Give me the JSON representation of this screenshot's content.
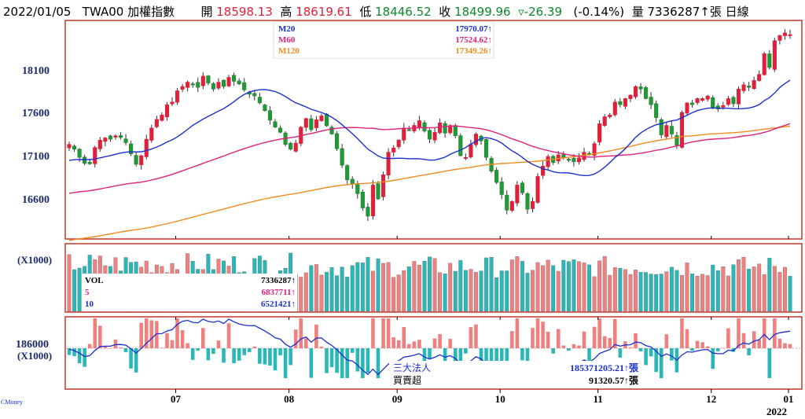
{
  "header": {
    "date": "2022/01/05",
    "symbol": "TWA00 加權指數",
    "open_label": "開",
    "open_value": "18598.13",
    "high_label": "高",
    "high_value": "18619.61",
    "low_label": "低",
    "low_value": "18446.52",
    "close_label": "收",
    "close_value": "18499.96",
    "change_value": "▿-26.39",
    "change_pct": "(-0.14%)",
    "volume_label": "量",
    "volume_value": "7336287↑張",
    "period": "日線"
  },
  "colors": {
    "up": "#f08080",
    "down": "#2ab7b7",
    "frame": "#c0392b",
    "ma20": "#1a2fd0",
    "ma60": "#e0207a",
    "ma120": "#f08c1e",
    "institutional_line": "#1a2fd0",
    "axis_text": "#1a2a6b"
  },
  "price_panel": {
    "y_ticks": [
      "18100",
      "17600",
      "17100",
      "16600"
    ],
    "legend": [
      {
        "name": "M20",
        "value": "17970.07↑",
        "color": "#1a2fd0"
      },
      {
        "name": "M60",
        "value": "17524.62↑",
        "color": "#e0207a"
      },
      {
        "name": "M120",
        "value": "17349.26↑",
        "color": "#f08c1e"
      }
    ]
  },
  "volume_panel": {
    "unit_label": "(X1000)",
    "legend": [
      {
        "name": "VOL",
        "value": "7336287↑",
        "color": "#000000"
      },
      {
        "name": "5",
        "value": "6837711↑",
        "color": "#e0207a"
      },
      {
        "name": "10",
        "value": "6521421↑",
        "color": "#1a2fd0"
      }
    ]
  },
  "inst_panel": {
    "y_tick": "186000",
    "unit_label": "(X1000)",
    "legend": [
      {
        "name": "三大法人",
        "value": "185371205.21↑張",
        "color": "#1a2fd0"
      },
      {
        "name": "買賣超",
        "value": "91320.57↑張",
        "color": "#000000"
      }
    ]
  },
  "x_axis": {
    "months": [
      "07",
      "08",
      "09",
      "10",
      "11",
      "12",
      "01"
    ],
    "year_label": "2022"
  },
  "brand": "CMoney",
  "chart_data": {
    "type": "candlestick",
    "symbol": "TWA00 加權指數",
    "period": "日線",
    "y_ticks": [
      16600,
      17100,
      17600,
      18100
    ],
    "ylim": [
      16150,
      18720
    ],
    "candles_close": [
      17230,
      17175,
      17080,
      17010,
      17005,
      17195,
      17280,
      17305,
      17290,
      17330,
      17310,
      17250,
      17120,
      17000,
      17100,
      17290,
      17420,
      17520,
      17570,
      17690,
      17720,
      17850,
      17900,
      17950,
      17930,
      17890,
      18020,
      17940,
      17870,
      17950,
      17900,
      18005,
      17960,
      17930,
      17860,
      17810,
      17790,
      17710,
      17620,
      17510,
      17430,
      17370,
      17230,
      17175,
      17245,
      17430,
      17530,
      17400,
      17515,
      17560,
      17445,
      17350,
      17180,
      16990,
      16820,
      16770,
      16660,
      16495,
      16400,
      16760,
      16600,
      16880,
      17140,
      17190,
      17280,
      17420,
      17400,
      17450,
      17505,
      17385,
      17290,
      17370,
      17480,
      17360,
      17450,
      17330,
      17100,
      17080,
      17230,
      17350,
      17270,
      17080,
      16920,
      16790,
      16650,
      16470,
      16570,
      16760,
      16670,
      16480,
      16570,
      16860,
      16980,
      17090,
      17020,
      17110,
      17080,
      17050,
      17030,
      17075,
      17140,
      17110,
      17240,
      17470,
      17550,
      17570,
      17720,
      17690,
      17760,
      17800,
      17900,
      17870,
      17760,
      17690,
      17540,
      17340,
      17450,
      17350,
      17220,
      17600,
      17710,
      17690,
      17760,
      17760,
      17790,
      17660,
      17640,
      17680,
      17760,
      17700,
      17870,
      17920,
      17890,
      17970,
      18040,
      18280,
      18120,
      18430,
      18490,
      18520,
      18500
    ],
    "ma20_end": 17970.07,
    "ma60_end": 17524.62,
    "ma120_end": 17349.26,
    "volume_panel": {
      "unit": "(X1000)",
      "vol_last": 7336287,
      "ma5": 6837711,
      "ma10": 6521421
    },
    "institutional_panel": {
      "unit": "(X1000)",
      "tick": 186000,
      "three_major_cumulative": 185371205.21,
      "net_buy_sell": 91320.57
    },
    "x_labels": [
      "07",
      "08",
      "09",
      "10",
      "11",
      "12",
      "01"
    ],
    "year_label": "2022"
  }
}
